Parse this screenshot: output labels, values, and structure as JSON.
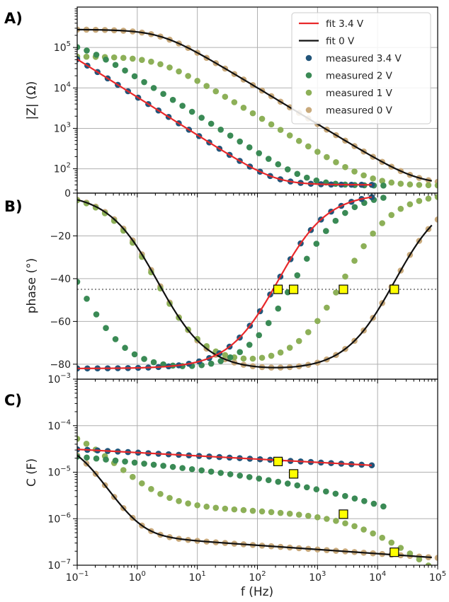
{
  "colors": {
    "fit_3_4": "#e8282a",
    "fit_0": "#111111",
    "measured_3_4": "#22557a",
    "measured_2": "#3a8a55",
    "measured_1": "#8db058",
    "measured_0": "#c9aa7c",
    "marker_fill": "#ffff00",
    "grid": "#b0b0b0"
  },
  "chart_data": [
    {
      "panel": "A)",
      "type": "scatter",
      "xscale": "log",
      "yscale": "log",
      "xlim": [
        0.1,
        100000
      ],
      "ylim": [
        25,
        1000000
      ],
      "ylabel": "|Z| (Ω)",
      "yticks": [
        {
          "v": 100,
          "label": "10^2"
        },
        {
          "v": 1000,
          "label": "10^3"
        },
        {
          "v": 10000,
          "label": "10^4"
        },
        {
          "v": 100000,
          "label": "10^5"
        }
      ],
      "grid": true,
      "legend": {
        "placement": "top-right",
        "entries": [
          {
            "label": "fit 3.4 V",
            "kind": "line",
            "color": "fit_3_4"
          },
          {
            "label": "fit 0 V",
            "kind": "line",
            "color": "fit_0"
          },
          {
            "label": "measured 3.4 V",
            "kind": "marker",
            "color": "measured_3_4"
          },
          {
            "label": "measured 2 V",
            "kind": "marker",
            "color": "measured_2"
          },
          {
            "label": "measured 1 V",
            "kind": "marker",
            "color": "measured_1"
          },
          {
            "label": "measured 0 V",
            "kind": "marker",
            "color": "measured_0"
          }
        ]
      },
      "series": [
        {
          "name": "measured 0 V",
          "color": "measured_0",
          "kind": "points",
          "model": {
            "Rs": 40,
            "R": 280000,
            "Q": 3e-07,
            "n": 0.9
          },
          "xrange": [
            0.1,
            100000
          ],
          "npts": 40
        },
        {
          "name": "measured 1 V",
          "color": "measured_1",
          "kind": "points",
          "model": {
            "Rs": 38,
            "R": 60000,
            "Q": 1.5e-06,
            "n": 0.9
          },
          "xrange": [
            0.1,
            100000
          ],
          "npts": 40
        },
        {
          "name": "measured 2 V",
          "color": "measured_2",
          "kind": "points",
          "model": {
            "Rs": 38,
            "R": 150000,
            "Q": 1e-05,
            "n": 0.93
          },
          "xrange": [
            0.1,
            12500
          ],
          "npts": 33
        },
        {
          "name": "measured 3.4 V",
          "color": "measured_3_4",
          "kind": "points",
          "model": {
            "Rs": 40,
            "R": 1000000,
            "Q": 3e-05,
            "n": 0.94
          },
          "xrange": [
            0.1,
            8000
          ],
          "npts": 30
        },
        {
          "name": "fit 0 V",
          "color": "fit_0",
          "kind": "line",
          "model": {
            "Rs": 40,
            "R": 280000,
            "Q": 3e-07,
            "n": 0.9
          },
          "xrange": [
            0.1,
            80000
          ]
        },
        {
          "name": "fit 3.4 V",
          "color": "fit_3_4",
          "kind": "line",
          "model": {
            "Rs": 40,
            "R": 1000000,
            "Q": 3e-05,
            "n": 0.94
          },
          "xrange": [
            0.1,
            8000
          ]
        }
      ]
    },
    {
      "panel": "B)",
      "type": "scatter",
      "xscale": "log",
      "yscale": "linear",
      "xlim": [
        0.1,
        100000
      ],
      "ylim": [
        -87,
        0
      ],
      "ylabel": "phase (°)",
      "yticks": [
        {
          "v": 0,
          "label": "0"
        },
        {
          "v": -20,
          "label": "−20"
        },
        {
          "v": -40,
          "label": "−40"
        },
        {
          "v": -60,
          "label": "−60"
        },
        {
          "v": -80,
          "label": "−80"
        }
      ],
      "reference_line": {
        "y": -45,
        "style": "dotted"
      },
      "grid": true,
      "series": [
        {
          "name": "measured 0 V",
          "color": "measured_0",
          "kind": "points",
          "phase": {
            "shape": "band",
            "fLow": 2.2,
            "fHigh": 19000,
            "phimax": 83
          },
          "xrange": [
            0.1,
            100000
          ],
          "npts": 40
        },
        {
          "name": "measured 1 V",
          "color": "measured_1",
          "kind": "points",
          "phase": {
            "shape": "band",
            "fLow": 2.0,
            "fHigh": 2700,
            "phimax": 81
          },
          "xrange": [
            0.1,
            100000
          ],
          "npts": 40
        },
        {
          "name": "measured 2 V",
          "color": "measured_2",
          "kind": "points",
          "phase": {
            "shape": "band",
            "fLow": 0.1,
            "fHigh": 400,
            "phimax": 83
          },
          "xrange": [
            0.1,
            12500
          ],
          "npts": 33
        },
        {
          "name": "measured 3.4 V",
          "color": "measured_3_4",
          "kind": "points",
          "phase": {
            "shape": "high",
            "fHigh": 220,
            "phimax": 82
          },
          "xrange": [
            0.1,
            8000
          ],
          "npts": 30
        },
        {
          "name": "fit 0 V",
          "color": "fit_0",
          "kind": "line",
          "phase": {
            "shape": "band",
            "fLow": 2.2,
            "fHigh": 19000,
            "phimax": 83
          },
          "xrange": [
            0.1,
            80000
          ]
        },
        {
          "name": "fit 3.4 V",
          "color": "fit_3_4",
          "kind": "line",
          "phase": {
            "shape": "high",
            "fHigh": 220,
            "phimax": 82
          },
          "xrange": [
            0.1,
            8000
          ]
        }
      ],
      "square_markers": [
        {
          "x": 220,
          "y": -45
        },
        {
          "x": 400,
          "y": -45
        },
        {
          "x": 2700,
          "y": -45
        },
        {
          "x": 19000,
          "y": -45
        }
      ]
    },
    {
      "panel": "C)",
      "type": "scatter",
      "xscale": "log",
      "yscale": "log",
      "xlim": [
        0.1,
        100000
      ],
      "ylim": [
        1e-07,
        0.001
      ],
      "xlabel": "f (Hz)",
      "ylabel": "C (F)",
      "xticks": [
        {
          "v": 0.1,
          "label": "10^−1"
        },
        {
          "v": 1,
          "label": "10^0"
        },
        {
          "v": 10,
          "label": "10^1"
        },
        {
          "v": 100,
          "label": "10^2"
        },
        {
          "v": 1000,
          "label": "10^3"
        },
        {
          "v": 10000,
          "label": "10^4"
        },
        {
          "v": 100000,
          "label": "10^5"
        }
      ],
      "yticks": [
        {
          "v": 1e-07,
          "label": "10^−7"
        },
        {
          "v": 1e-06,
          "label": "10^−6"
        },
        {
          "v": 1e-05,
          "label": "10^−5"
        },
        {
          "v": 0.0001,
          "label": "10^−4"
        },
        {
          "v": 0.001,
          "label": "10^−3"
        }
      ],
      "grid": true,
      "series": [
        {
          "name": "measured 0 V",
          "color": "measured_0",
          "kind": "points",
          "cap": {
            "type": "drop",
            "Cinf": 3.3e-07,
            "A": 4.5e-05,
            "fc": 0.1,
            "p": 2,
            "slope": 0.09
          },
          "xrange": [
            0.1,
            100000
          ],
          "npts": 40
        },
        {
          "name": "measured 1 V",
          "color": "measured_1",
          "kind": "points",
          "cap": {
            "type": "drop",
            "Cinf": 1.7e-06,
            "A": 0.0001,
            "fc": 0.1,
            "p": 1.3,
            "slope": 0.06,
            "tailF": 6000,
            "tailK": 0.9
          },
          "xrange": [
            0.1,
            100000
          ],
          "npts": 40
        },
        {
          "name": "measured 2 V",
          "color": "measured_2",
          "kind": "points",
          "cap": {
            "type": "flat",
            "C0": 2.2e-05,
            "slope": 0.125,
            "tailF": 3000,
            "tailK": 0.4
          },
          "xrange": [
            0.1,
            12500
          ],
          "npts": 33
        },
        {
          "name": "measured 3.4 V",
          "color": "measured_3_4",
          "kind": "points",
          "cap": {
            "type": "flat",
            "C0": 3.1e-05,
            "slope": 0.07
          },
          "xrange": [
            0.1,
            8000
          ],
          "npts": 30
        },
        {
          "name": "fit 0 V",
          "color": "fit_0",
          "kind": "line",
          "cap": {
            "type": "drop",
            "Cinf": 3.3e-07,
            "A": 4.5e-05,
            "fc": 0.1,
            "p": 2,
            "slope": 0.09
          },
          "xrange": [
            0.1,
            80000
          ]
        },
        {
          "name": "fit 3.4 V",
          "color": "fit_3_4",
          "kind": "line",
          "cap": {
            "type": "flat",
            "C0": 3.1e-05,
            "slope": 0.07
          },
          "xrange": [
            0.1,
            8000
          ]
        }
      ],
      "square_markers": [
        {
          "x": 220,
          "y": 1.7e-05
        },
        {
          "x": 400,
          "y": 9.2e-06
        },
        {
          "x": 2700,
          "y": 1.25e-06
        },
        {
          "x": 19000,
          "y": 1.9e-07
        }
      ]
    }
  ]
}
